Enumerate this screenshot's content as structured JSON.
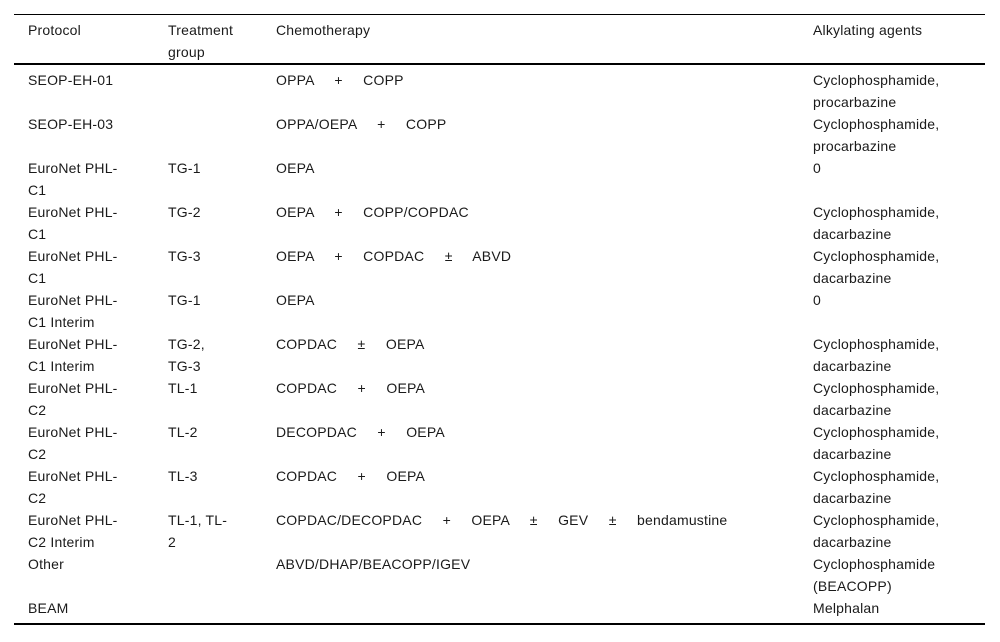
{
  "header": {
    "columns": [
      "Protocol",
      "Treatment\ngroup",
      "Chemotherapy",
      "Alkylating agents"
    ]
  },
  "rows": [
    {
      "protocol": "SEOP-EH-01",
      "treatment_group": "",
      "chemotherapy": "OPPA     +     COPP",
      "alkylating_agents": "Cyclophosphamide,\nprocarbazine"
    },
    {
      "protocol": "SEOP-EH-03",
      "treatment_group": "",
      "chemotherapy": "OPPA/OEPA     +     COPP",
      "alkylating_agents": "Cyclophosphamide,\nprocarbazine"
    },
    {
      "protocol": "EuroNet PHL-\nC1",
      "treatment_group": "TG-1",
      "chemotherapy": "OEPA",
      "alkylating_agents": "0"
    },
    {
      "protocol": "EuroNet PHL-\nC1",
      "treatment_group": "TG-2",
      "chemotherapy": "OEPA     +     COPP/COPDAC",
      "alkylating_agents": "Cyclophosphamide,\ndacarbazine"
    },
    {
      "protocol": "EuroNet PHL-\nC1",
      "treatment_group": "TG-3",
      "chemotherapy": "OEPA     +     COPDAC     ±     ABVD",
      "alkylating_agents": "Cyclophosphamide,\ndacarbazine"
    },
    {
      "protocol": "EuroNet PHL-\nC1 Interim",
      "treatment_group": "TG-1",
      "chemotherapy": "OEPA",
      "alkylating_agents": "0"
    },
    {
      "protocol": "EuroNet PHL-\nC1 Interim",
      "treatment_group": "TG-2,\nTG-3",
      "chemotherapy": "COPDAC     ±     OEPA",
      "alkylating_agents": "Cyclophosphamide,\ndacarbazine"
    },
    {
      "protocol": "EuroNet PHL-\nC2",
      "treatment_group": "TL-1",
      "chemotherapy": "COPDAC     +     OEPA",
      "alkylating_agents": "Cyclophosphamide,\ndacarbazine"
    },
    {
      "protocol": "EuroNet PHL-\nC2",
      "treatment_group": "TL-2",
      "chemotherapy": "DECOPDAC     +     OEPA",
      "alkylating_agents": "Cyclophosphamide,\ndacarbazine"
    },
    {
      "protocol": "EuroNet PHL-\nC2",
      "treatment_group": "TL-3",
      "chemotherapy": "COPDAC     +     OEPA",
      "alkylating_agents": "Cyclophosphamide,\ndacarbazine"
    },
    {
      "protocol": "EuroNet PHL-\nC2 Interim",
      "treatment_group": "TL-1, TL-\n2",
      "chemotherapy": "COPDAC/DECOPDAC     +     OEPA     ±     GEV     ±     bendamustine",
      "alkylating_agents": "Cyclophosphamide,\ndacarbazine"
    },
    {
      "protocol": "Other",
      "treatment_group": "",
      "chemotherapy": "ABVD/DHAP/BEACOPP/IGEV",
      "alkylating_agents": "Cyclophosphamide\n(BEACOPP)"
    },
    {
      "protocol": "BEAM",
      "treatment_group": "",
      "chemotherapy": "",
      "alkylating_agents": "Melphalan"
    }
  ]
}
